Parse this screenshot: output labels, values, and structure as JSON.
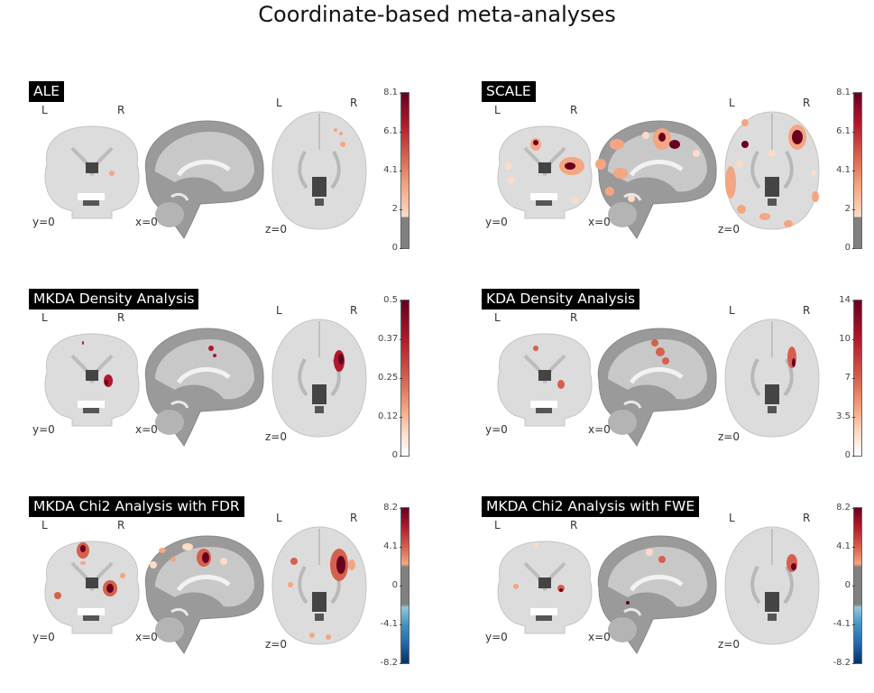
{
  "title": "Coordinate-based meta-analyses",
  "panels": [
    {
      "title": "ALE",
      "ticks": [
        "8.1",
        "6.1",
        "4.1",
        "2",
        "0"
      ],
      "cbar": "pos_thr",
      "blobs": "ale"
    },
    {
      "title": "SCALE",
      "ticks": [
        "8.1",
        "6.1",
        "4.1",
        "2",
        "0"
      ],
      "cbar": "pos_thr",
      "blobs": "scale"
    },
    {
      "title": "MKDA Density Analysis",
      "ticks": [
        "0.5",
        "0.37",
        "0.25",
        "0.12",
        "0"
      ],
      "cbar": "pos",
      "blobs": "mkda"
    },
    {
      "title": "KDA Density Analysis",
      "ticks": [
        "14",
        "10",
        "7",
        "3.5",
        "0"
      ],
      "cbar": "pos",
      "blobs": "kda"
    },
    {
      "title": "MKDA Chi2 Analysis with FDR",
      "ticks": [
        "8.2",
        "4.1",
        "0",
        "-4.1",
        "-8.2"
      ],
      "cbar": "div",
      "blobs": "fdr"
    },
    {
      "title": "MKDA Chi2 Analysis with FWE",
      "ticks": [
        "8.2",
        "4.1",
        "0",
        "-4.1",
        "-8.2"
      ],
      "cbar": "div",
      "blobs": "fwe"
    }
  ],
  "labels": {
    "left": "L",
    "right": "R",
    "y": "y=0",
    "x": "x=0",
    "z": "z=0"
  }
}
